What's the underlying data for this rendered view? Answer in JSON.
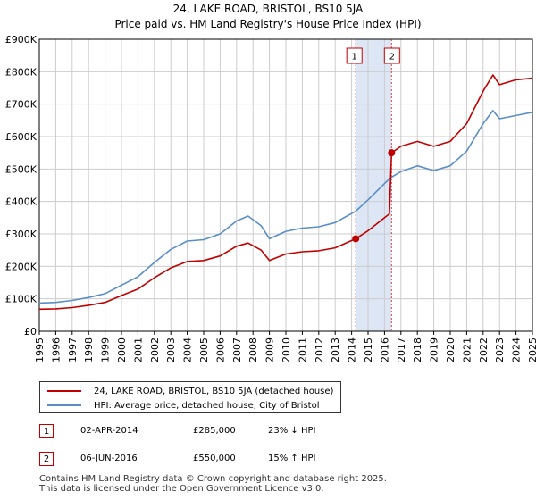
{
  "title_line1": "24, LAKE ROAD, BRISTOL, BS10 5JA",
  "title_line2": "Price paid vs. HM Land Registry's House Price Index (HPI)",
  "colors": {
    "property": "#c00000",
    "hpi": "#5b8ec6",
    "band": "#dde6f5",
    "grid": "#cccccc"
  },
  "chart_data": {
    "type": "line",
    "x_range": [
      1995,
      2025
    ],
    "y_range": [
      0,
      900000
    ],
    "x_ticks": [
      "1995",
      "1996",
      "1997",
      "1998",
      "1999",
      "2000",
      "2001",
      "2002",
      "2003",
      "2004",
      "2005",
      "2006",
      "2007",
      "2008",
      "2009",
      "2010",
      "2011",
      "2012",
      "2013",
      "2014",
      "2015",
      "2016",
      "2017",
      "2018",
      "2019",
      "2020",
      "2021",
      "2022",
      "2023",
      "2024",
      "2025"
    ],
    "y_ticks": [
      {
        "value": 0,
        "label": "£0"
      },
      {
        "value": 100000,
        "label": "£100K"
      },
      {
        "value": 200000,
        "label": "£200K"
      },
      {
        "value": 300000,
        "label": "£300K"
      },
      {
        "value": 400000,
        "label": "£400K"
      },
      {
        "value": 500000,
        "label": "£500K"
      },
      {
        "value": 600000,
        "label": "£600K"
      },
      {
        "value": 700000,
        "label": "£700K"
      },
      {
        "value": 800000,
        "label": "£800K"
      },
      {
        "value": 900000,
        "label": "£900K"
      }
    ],
    "shaded_band": [
      2014.25,
      2016.43
    ],
    "series": [
      {
        "name": "24, LAKE ROAD, BRISTOL, BS10 5JA (detached house)",
        "color": "#c00000",
        "points": [
          [
            1995,
            68000
          ],
          [
            1996,
            69000
          ],
          [
            1997,
            73000
          ],
          [
            1998,
            80000
          ],
          [
            1999,
            89000
          ],
          [
            2000,
            110000
          ],
          [
            2001,
            130000
          ],
          [
            2002,
            165000
          ],
          [
            2003,
            195000
          ],
          [
            2004,
            215000
          ],
          [
            2005,
            218000
          ],
          [
            2006,
            232000
          ],
          [
            2007,
            262000
          ],
          [
            2007.7,
            272000
          ],
          [
            2008.5,
            250000
          ],
          [
            2009,
            218000
          ],
          [
            2010,
            238000
          ],
          [
            2011,
            245000
          ],
          [
            2012,
            248000
          ],
          [
            2013,
            257000
          ],
          [
            2014.25,
            285000
          ],
          [
            2015,
            310000
          ],
          [
            2016.3,
            362000
          ],
          [
            2016.43,
            550000
          ],
          [
            2017,
            570000
          ],
          [
            2018,
            585000
          ],
          [
            2019,
            570000
          ],
          [
            2020,
            585000
          ],
          [
            2021,
            640000
          ],
          [
            2022,
            740000
          ],
          [
            2022.6,
            790000
          ],
          [
            2023,
            760000
          ],
          [
            2024,
            775000
          ],
          [
            2025,
            780000
          ]
        ]
      },
      {
        "name": "HPI: Average price, detached house, City of Bristol",
        "color": "#5b8ec6",
        "points": [
          [
            1995,
            87000
          ],
          [
            1996,
            89000
          ],
          [
            1997,
            95000
          ],
          [
            1998,
            104000
          ],
          [
            1999,
            116000
          ],
          [
            2000,
            142000
          ],
          [
            2001,
            168000
          ],
          [
            2002,
            212000
          ],
          [
            2003,
            252000
          ],
          [
            2004,
            278000
          ],
          [
            2005,
            282000
          ],
          [
            2006,
            300000
          ],
          [
            2007,
            340000
          ],
          [
            2007.7,
            355000
          ],
          [
            2008.5,
            325000
          ],
          [
            2009,
            285000
          ],
          [
            2010,
            308000
          ],
          [
            2011,
            318000
          ],
          [
            2012,
            322000
          ],
          [
            2013,
            335000
          ],
          [
            2014.25,
            370000
          ],
          [
            2015,
            405000
          ],
          [
            2016.3,
            470000
          ],
          [
            2016.43,
            475000
          ],
          [
            2017,
            492000
          ],
          [
            2018,
            510000
          ],
          [
            2019,
            495000
          ],
          [
            2020,
            510000
          ],
          [
            2021,
            555000
          ],
          [
            2022,
            640000
          ],
          [
            2022.6,
            680000
          ],
          [
            2023,
            655000
          ],
          [
            2024,
            665000
          ],
          [
            2025,
            675000
          ]
        ]
      }
    ],
    "sales": [
      {
        "num": "1",
        "x": 2014.25,
        "y": 285000,
        "date": "02-APR-2014",
        "price": "£285,000",
        "hpi": "23% ↓ HPI"
      },
      {
        "num": "2",
        "x": 2016.43,
        "y": 550000,
        "date": "06-JUN-2016",
        "price": "£550,000",
        "hpi": "15% ↑ HPI"
      }
    ]
  },
  "legend": {
    "property_label": "24, LAKE ROAD, BRISTOL, BS10 5JA (detached house)",
    "hpi_label": "HPI: Average price, detached house, City of Bristol"
  },
  "footer": {
    "line1": "Contains HM Land Registry data © Crown copyright and database right 2025.",
    "line2": "This data is licensed under the Open Government Licence v3.0."
  }
}
